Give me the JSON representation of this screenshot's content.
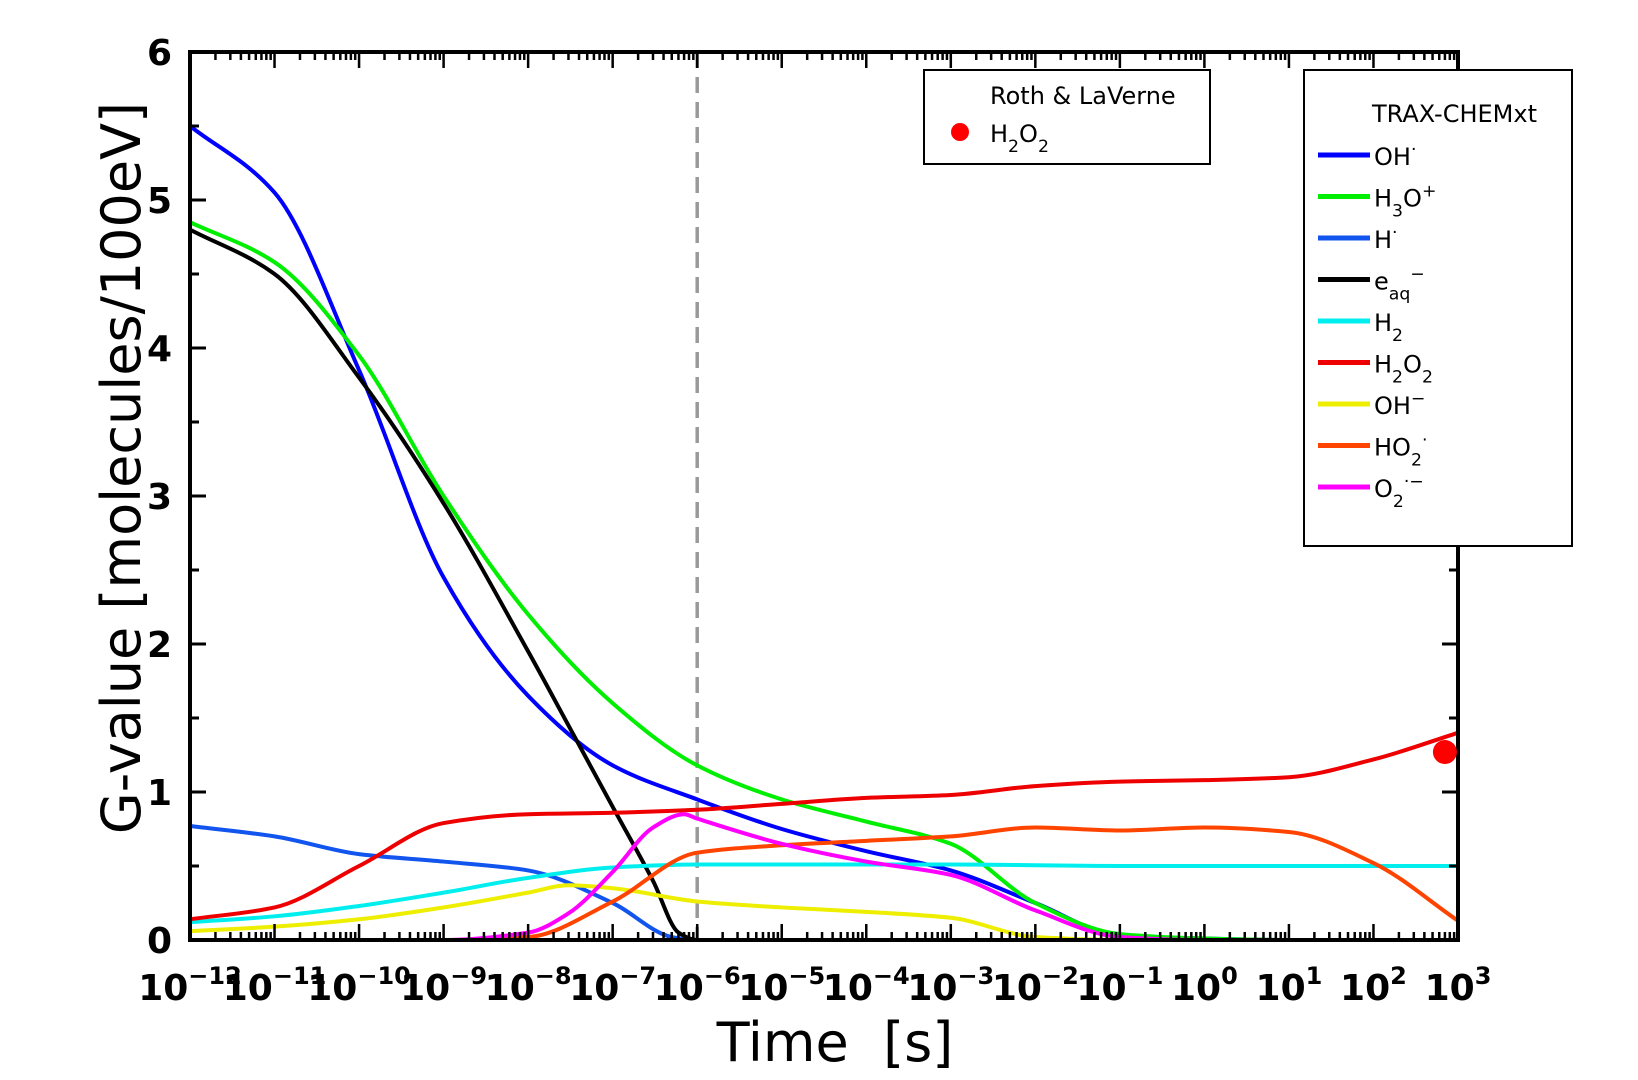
{
  "chart_data": {
    "type": "line",
    "xlabel": "Time  [s]",
    "ylabel": "G-value  [molecules/100eV]",
    "xscale": "log",
    "xlim": [
      1e-12,
      1000
    ],
    "ylim": [
      0,
      6
    ],
    "grid": false,
    "vline": {
      "x": 1e-06,
      "color": "#999999",
      "style": "dashed"
    },
    "y_ticks": [
      0,
      1,
      2,
      3,
      4,
      5,
      6
    ],
    "x_ticks": [
      {
        "base": "10",
        "exp": "−12"
      },
      {
        "base": "10",
        "exp": "−11"
      },
      {
        "base": "10",
        "exp": "−10"
      },
      {
        "base": "10",
        "exp": "−9"
      },
      {
        "base": "10",
        "exp": "−8"
      },
      {
        "base": "10",
        "exp": "−7"
      },
      {
        "base": "10",
        "exp": "−6"
      },
      {
        "base": "10",
        "exp": "−5"
      },
      {
        "base": "10",
        "exp": "−4"
      },
      {
        "base": "10",
        "exp": "−3"
      },
      {
        "base": "10",
        "exp": "−2"
      },
      {
        "base": "10",
        "exp": "−1"
      },
      {
        "base": "10",
        "exp": "0"
      },
      {
        "base": "10",
        "exp": "1"
      },
      {
        "base": "10",
        "exp": "2"
      },
      {
        "base": "10",
        "exp": "3"
      }
    ],
    "reference": {
      "title": "Roth & LaVerne",
      "label_parts": [
        [
          "H",
          ""
        ],
        [
          "2",
          "sub"
        ],
        [
          "O",
          ""
        ],
        [
          "2",
          "sub"
        ]
      ],
      "color": "#ff0000",
      "points": [
        {
          "x": 700,
          "y": 1.27
        }
      ]
    },
    "legend": {
      "title": "TRAX-CHEMxt",
      "placement": "top-right"
    },
    "series": [
      {
        "key": "OH_rad",
        "color": "#0000ff",
        "label_parts": [
          [
            "OH",
            ""
          ],
          [
            "·",
            "sup"
          ]
        ],
        "x": [
          1e-12,
          1e-11,
          1e-10,
          1e-09,
          1e-08,
          1e-07,
          1e-06,
          1e-05,
          0.0001,
          0.001,
          0.01,
          0.1,
          1,
          10,
          100,
          1000
        ],
        "y": [
          5.5,
          5.05,
          3.85,
          2.45,
          1.65,
          1.18,
          0.95,
          0.75,
          0.6,
          0.47,
          0.25,
          0.03,
          0.01,
          0.0,
          0.0,
          0.0
        ]
      },
      {
        "key": "H3O",
        "color": "#00ee00",
        "label_parts": [
          [
            "H",
            ""
          ],
          [
            "3",
            "sub"
          ],
          [
            "O",
            ""
          ],
          [
            "+",
            "sup"
          ]
        ],
        "x": [
          1e-12,
          1e-11,
          1e-10,
          1e-09,
          1e-08,
          1e-07,
          1e-06,
          1e-05,
          0.0001,
          0.001,
          0.01,
          0.1,
          1,
          10,
          100,
          1000
        ],
        "y": [
          4.85,
          4.58,
          3.95,
          3.0,
          2.2,
          1.6,
          1.18,
          0.95,
          0.8,
          0.65,
          0.25,
          0.04,
          0.01,
          0.0,
          0.0,
          0.0
        ]
      },
      {
        "key": "H_rad",
        "color": "#1155ee",
        "label_parts": [
          [
            "H",
            ""
          ],
          [
            "·",
            "sup"
          ]
        ],
        "x": [
          1e-12,
          1e-11,
          1e-10,
          1e-09,
          1e-08,
          1e-07,
          5e-07,
          1e-06,
          1000
        ],
        "y": [
          0.77,
          0.7,
          0.58,
          0.53,
          0.47,
          0.25,
          0.02,
          0.0,
          0.0
        ]
      },
      {
        "key": "e_aq",
        "color": "#000000",
        "label_parts": [
          [
            "e",
            ""
          ],
          [
            "aq",
            "sub"
          ],
          [
            "−",
            "sup"
          ]
        ],
        "x": [
          1e-12,
          1e-11,
          1e-10,
          1e-09,
          1e-08,
          3e-08,
          1e-07,
          3e-07,
          6e-07,
          1e-06,
          1000
        ],
        "y": [
          4.8,
          4.5,
          3.8,
          2.95,
          1.95,
          1.45,
          0.9,
          0.4,
          0.05,
          0.0,
          0.0
        ]
      },
      {
        "key": "H2",
        "color": "#00eeee",
        "label_parts": [
          [
            "H",
            ""
          ],
          [
            "2",
            "sub"
          ]
        ],
        "x": [
          1e-12,
          1e-11,
          1e-10,
          1e-09,
          1e-08,
          1e-07,
          1e-06,
          1e-05,
          0.001,
          0.1,
          1,
          10,
          100,
          1000
        ],
        "y": [
          0.12,
          0.16,
          0.23,
          0.32,
          0.42,
          0.49,
          0.51,
          0.51,
          0.51,
          0.5,
          0.5,
          0.5,
          0.5,
          0.5
        ]
      },
      {
        "key": "H2O2",
        "color": "#ee0000",
        "label_parts": [
          [
            "H",
            ""
          ],
          [
            "2",
            "sub"
          ],
          [
            "O",
            ""
          ],
          [
            "2",
            "sub"
          ]
        ],
        "x": [
          1e-12,
          1e-11,
          1e-10,
          1e-09,
          1e-08,
          1e-07,
          1e-06,
          1e-05,
          0.0001,
          0.001,
          0.01,
          0.1,
          1,
          10,
          100,
          1000
        ],
        "y": [
          0.14,
          0.22,
          0.5,
          0.79,
          0.85,
          0.86,
          0.88,
          0.92,
          0.96,
          0.98,
          1.04,
          1.07,
          1.08,
          1.1,
          1.22,
          1.4
        ]
      },
      {
        "key": "OH_minus",
        "color": "#eeee00",
        "label_parts": [
          [
            "OH",
            ""
          ],
          [
            "−",
            "sup"
          ]
        ],
        "x": [
          1e-12,
          1e-11,
          1e-10,
          1e-09,
          1e-08,
          3e-08,
          1e-07,
          1e-06,
          1e-05,
          0.0001,
          0.001,
          0.01,
          0.1,
          1000
        ],
        "y": [
          0.06,
          0.09,
          0.14,
          0.22,
          0.32,
          0.37,
          0.35,
          0.26,
          0.22,
          0.19,
          0.15,
          0.02,
          0.0,
          0.0
        ]
      },
      {
        "key": "HO2",
        "color": "#ff4400",
        "label_parts": [
          [
            "HO",
            ""
          ],
          [
            "2",
            "sub"
          ],
          [
            "·",
            "sup"
          ]
        ],
        "x": [
          1e-12,
          1e-09,
          1e-08,
          1e-07,
          1e-06,
          1e-05,
          0.0001,
          0.001,
          0.01,
          0.1,
          1,
          10,
          100,
          1000
        ],
        "y": [
          0.0,
          0.0,
          0.02,
          0.26,
          0.59,
          0.64,
          0.67,
          0.7,
          0.76,
          0.74,
          0.76,
          0.73,
          0.52,
          0.13
        ]
      },
      {
        "key": "O2_minus",
        "color": "#ff00ff",
        "label_parts": [
          [
            "O",
            ""
          ],
          [
            "2",
            "sub"
          ],
          [
            "·−",
            "sup"
          ]
        ],
        "x": [
          1e-12,
          1e-09,
          1e-08,
          3e-08,
          1e-07,
          3e-07,
          7e-07,
          1e-06,
          1e-05,
          0.0001,
          0.001,
          0.01,
          0.1,
          1,
          1000
        ],
        "y": [
          0.0,
          0.0,
          0.05,
          0.18,
          0.46,
          0.76,
          0.85,
          0.82,
          0.65,
          0.53,
          0.44,
          0.2,
          0.02,
          0.0,
          0.0
        ]
      }
    ]
  }
}
